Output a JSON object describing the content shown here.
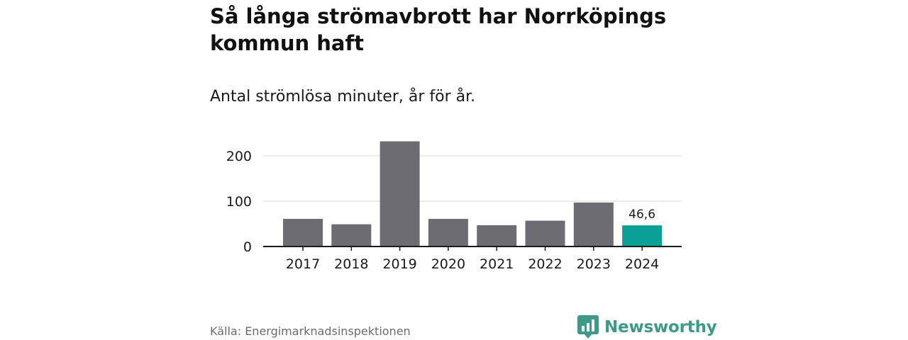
{
  "header": {
    "title": "Så långa strömavbrott har Norrköpings kommun haft",
    "subtitle": "Antal strömlösa minuter, år för år."
  },
  "chart_data": {
    "type": "bar",
    "title": "Så långa strömavbrott har Norrköpings kommun haft",
    "subtitle": "Antal strömlösa minuter, år för år.",
    "xlabel": "",
    "ylabel": "",
    "categories": [
      "2017",
      "2018",
      "2019",
      "2020",
      "2021",
      "2022",
      "2023",
      "2024"
    ],
    "values": [
      61,
      49,
      232,
      61,
      47,
      57,
      97,
      46.6
    ],
    "ylim": [
      0,
      250
    ],
    "yticks": [
      0,
      100,
      200
    ],
    "ytick_labels": [
      "0",
      "100",
      "200"
    ],
    "grid": true,
    "annotations": [
      {
        "category": "2024",
        "text": "46,6"
      }
    ],
    "highlight_category": "2024",
    "colors": {
      "bar": "#6d6c72",
      "highlight": "#0aa096",
      "grid": "#d9d9d9",
      "axis": "#1a1a1a"
    }
  },
  "footer": {
    "source": "Källa: Energimarknadsinspektionen",
    "brand": "Newsworthy",
    "brand_icon": "newsworthy-logo-icon",
    "brand_color": "#3d9a89"
  }
}
